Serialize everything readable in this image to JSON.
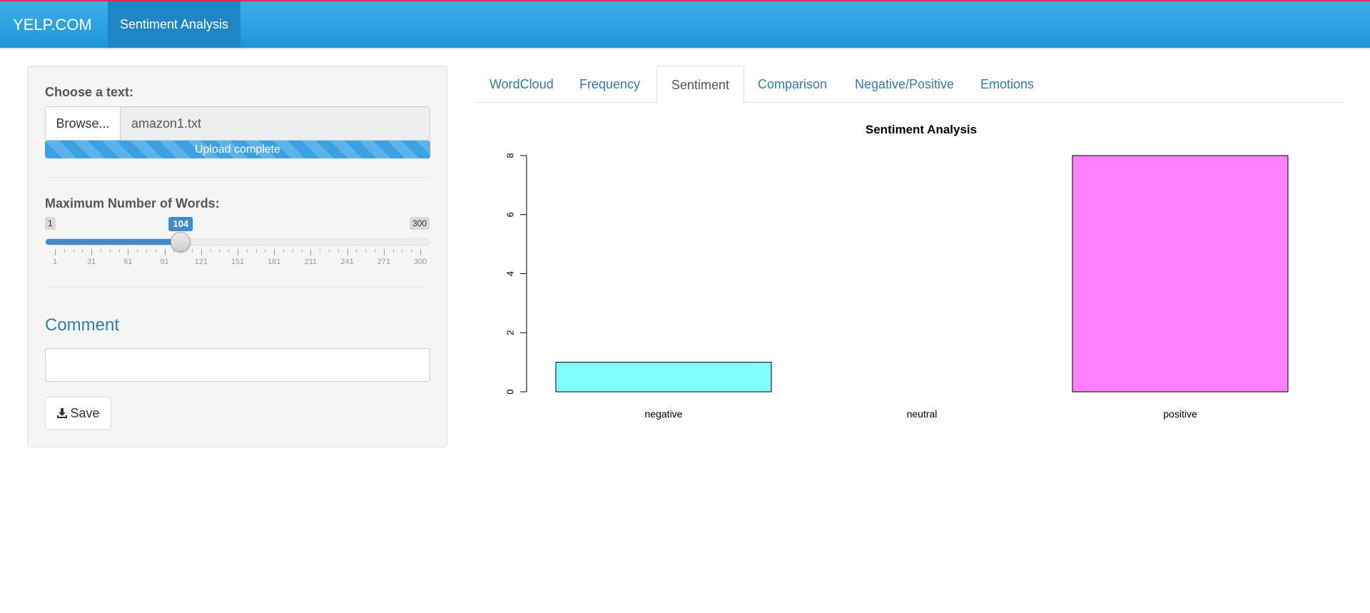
{
  "navbar": {
    "brand": "YELP.COM",
    "active_tab": "Sentiment Analysis",
    "accent_color": "#2aa0e2",
    "top_border_color": "#d9304a"
  },
  "sidebar": {
    "file_label": "Choose a text:",
    "browse_label": "Browse...",
    "file_name": "amazon1.txt",
    "upload_progress_percent": 100,
    "upload_status": "Upload complete",
    "slider": {
      "label": "Maximum Number of Words:",
      "min": 1,
      "max": 300,
      "value": 104,
      "min_label": "1",
      "max_label": "300",
      "value_label": "104",
      "ticks": [
        "1",
        "31",
        "61",
        "91",
        "121",
        "151",
        "181",
        "211",
        "241",
        "271",
        "300"
      ]
    },
    "comment_title": "Comment",
    "comment_value": "",
    "save_label": "Save"
  },
  "tabs": [
    {
      "label": "WordCloud",
      "active": false
    },
    {
      "label": "Frequency",
      "active": false
    },
    {
      "label": "Sentiment",
      "active": true
    },
    {
      "label": "Comparison",
      "active": false
    },
    {
      "label": "Negative/Positive",
      "active": false
    },
    {
      "label": "Emotions",
      "active": false
    }
  ],
  "chart_data": {
    "type": "bar",
    "title": "Sentiment Analysis",
    "categories": [
      "negative",
      "neutral",
      "positive"
    ],
    "values": [
      1,
      0,
      8
    ],
    "colors": [
      "#80ffff",
      "#ffffff",
      "#ff80ff"
    ],
    "ylim": [
      0,
      8
    ],
    "yticks": [
      "0",
      "2",
      "4",
      "6",
      "8"
    ],
    "xlabel": "",
    "ylabel": "",
    "grid": false
  }
}
